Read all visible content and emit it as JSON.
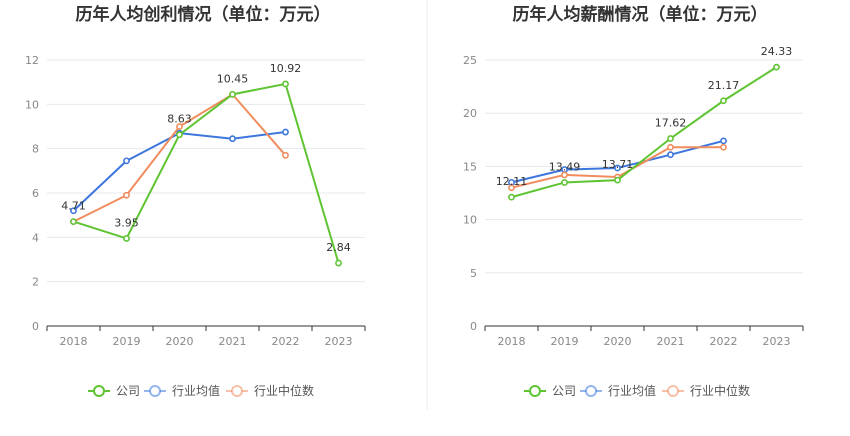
{
  "legend_labels": [
    "公司",
    "行业均值",
    "行业中位数"
  ],
  "colors": {
    "company": "#5ec432",
    "industry_mean": "#3d76dd",
    "industry_median": "#f08c5e"
  },
  "chart_data": [
    {
      "type": "line",
      "title": "历年人均创利情况（单位：万元）",
      "categories": [
        "2018",
        "2019",
        "2020",
        "2021",
        "2022",
        "2023"
      ],
      "ylim": [
        0,
        12
      ],
      "yticks": [
        0,
        2,
        4,
        6,
        8,
        10,
        12
      ],
      "grid": true,
      "legend": "bottom",
      "series": [
        {
          "name": "公司",
          "color": "#5ec432",
          "values": [
            4.71,
            3.95,
            8.63,
            10.45,
            10.92,
            2.84
          ]
        },
        {
          "name": "行业均值",
          "color": "#3d76dd",
          "values": [
            5.2,
            7.45,
            8.7,
            8.45,
            8.75,
            null
          ]
        },
        {
          "name": "行业中位数",
          "color": "#f08c5e",
          "values": [
            4.71,
            5.9,
            9.0,
            10.45,
            7.7,
            null
          ]
        }
      ],
      "data_labels": [
        {
          "text": "4.71",
          "index": 0,
          "value": 4.71
        },
        {
          "text": "3.95",
          "index": 1,
          "value": 3.95
        },
        {
          "text": "8.63",
          "index": 2,
          "value": 8.63
        },
        {
          "text": "10.45",
          "index": 3,
          "value": 10.45
        },
        {
          "text": "10.92",
          "index": 4,
          "value": 10.92
        },
        {
          "text": "2.84",
          "index": 5,
          "value": 2.84
        }
      ]
    },
    {
      "type": "line",
      "title": "历年人均薪酬情况（单位：万元）",
      "categories": [
        "2018",
        "2019",
        "2020",
        "2021",
        "2022",
        "2023"
      ],
      "ylim": [
        0,
        25
      ],
      "yticks": [
        0,
        5,
        10,
        15,
        20,
        25
      ],
      "grid": true,
      "legend": "bottom",
      "series": [
        {
          "name": "公司",
          "color": "#5ec432",
          "values": [
            12.11,
            13.49,
            13.71,
            17.62,
            21.17,
            24.33
          ]
        },
        {
          "name": "行业均值",
          "color": "#3d76dd",
          "values": [
            13.5,
            14.7,
            14.85,
            16.1,
            17.4,
            null
          ]
        },
        {
          "name": "行业中位数",
          "color": "#f08c5e",
          "values": [
            13.0,
            14.2,
            14.0,
            16.8,
            16.8,
            null
          ]
        }
      ],
      "data_labels": [
        {
          "text": "12.11",
          "index": 0,
          "value": 12.11
        },
        {
          "text": "13.49",
          "index": 1,
          "value": 13.49
        },
        {
          "text": "13.71",
          "index": 2,
          "value": 13.71
        },
        {
          "text": "17.62",
          "index": 3,
          "value": 17.62
        },
        {
          "text": "21.17",
          "index": 4,
          "value": 21.17
        },
        {
          "text": "24.33",
          "index": 5,
          "value": 24.33
        }
      ]
    }
  ]
}
